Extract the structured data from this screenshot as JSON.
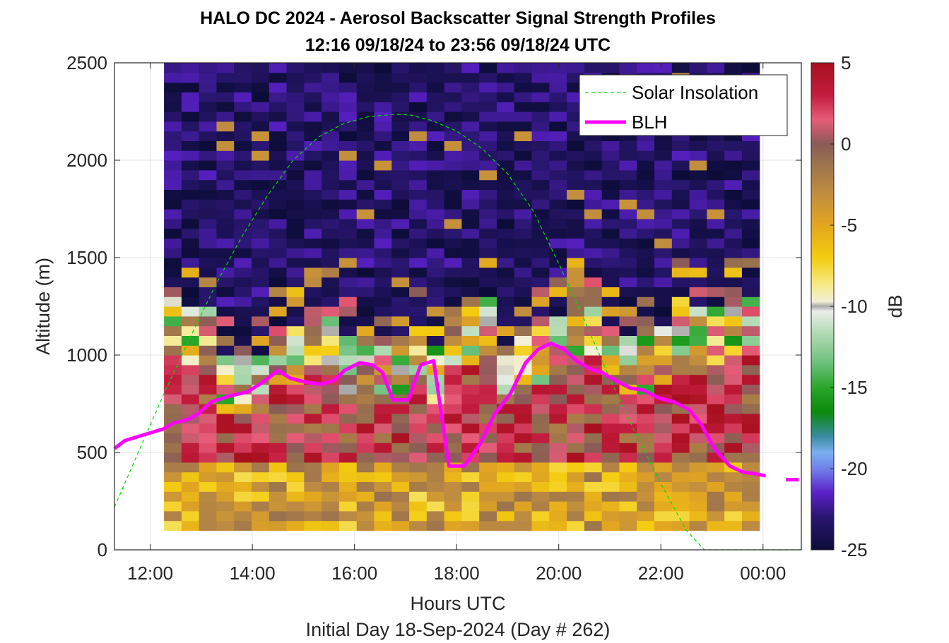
{
  "chart_data": {
    "type": "heatmap",
    "title": "HALO DC 2024 - Aerosol Backscatter Signal Strength Profiles",
    "subtitle": "12:16 09/18/24 to 23:56 09/18/24  UTC",
    "xlabel": "Hours UTC",
    "ylabel": "Altitude (m)",
    "footer": "Initial Day 18-Sep-2024 (Day # 262)",
    "x_range_hours": [
      11.3,
      24.75
    ],
    "x_ticks": [
      12,
      14,
      16,
      18,
      20,
      22,
      24
    ],
    "x_tick_labels": [
      "12:00",
      "14:00",
      "16:00",
      "18:00",
      "20:00",
      "22:00",
      "00:00"
    ],
    "ylim": [
      0,
      2500
    ],
    "y_ticks": [
      0,
      500,
      1000,
      1500,
      2000,
      2500
    ],
    "y_tick_labels": [
      "0",
      "500",
      "1000",
      "1500",
      "2000",
      "2500"
    ],
    "grid": true,
    "heatmap": {
      "time_start_hours": 12.27,
      "time_end_hours": 23.93,
      "columns": 34,
      "alt_start_m": 100,
      "alt_end_m": 2500,
      "rows": 48,
      "units": "dB",
      "colorbar": {
        "min": -25,
        "max": 5,
        "ticks": [
          5,
          0,
          -5,
          -10,
          -15,
          -20,
          -25
        ],
        "tick_labels": [
          "5",
          "0",
          "-5",
          "-10",
          "-15",
          "-20",
          "-25"
        ],
        "label": "dB",
        "colormap": [
          {
            "v": -25,
            "c": "#0c0c38"
          },
          {
            "v": -23,
            "c": "#2a1670"
          },
          {
            "v": -21.5,
            "c": "#5a20c8"
          },
          {
            "v": -20,
            "c": "#7080e8"
          },
          {
            "v": -19,
            "c": "#7ab0f0"
          },
          {
            "v": -18,
            "c": "#3a8aa0"
          },
          {
            "v": -16.5,
            "c": "#0a8a0a"
          },
          {
            "v": -15,
            "c": "#2aa62a"
          },
          {
            "v": -13.5,
            "c": "#6cc07c"
          },
          {
            "v": -11.5,
            "c": "#b8dcb8"
          },
          {
            "v": -10.3,
            "c": "#ececea"
          },
          {
            "v": -10,
            "c": "#a8a8a8"
          },
          {
            "v": -9.7,
            "c": "#f2f0d6"
          },
          {
            "v": -8.5,
            "c": "#f6e87a"
          },
          {
            "v": -7,
            "c": "#f4cc10"
          },
          {
            "v": -5,
            "c": "#e2a620"
          },
          {
            "v": -3,
            "c": "#bf8c40"
          },
          {
            "v": -1,
            "c": "#98704e"
          },
          {
            "v": 0,
            "c": "#8a5a58"
          },
          {
            "v": 1.5,
            "c": "#e65c78"
          },
          {
            "v": 3,
            "c": "#c21c3e"
          },
          {
            "v": 5,
            "c": "#a8101e"
          }
        ]
      },
      "profile_tops_m": [
        1280,
        1260,
        1250,
        1000,
        980,
        1000,
        1140,
        1170,
        1250,
        1260,
        1100,
        1080,
        1080,
        1100,
        1140,
        1060,
        1240,
        1250,
        1280,
        1050,
        1100,
        1150,
        1200,
        1280,
        1280,
        1150,
        1100,
        1100,
        1150,
        1280,
        1250,
        1250,
        1280,
        1280
      ]
    },
    "series": [
      {
        "name": "Solar Insolation",
        "style": "dashed",
        "color": "#00dd00",
        "x": [
          11.3,
          11.8,
          12.3,
          12.8,
          13.3,
          13.8,
          14.3,
          14.8,
          15.3,
          15.8,
          16.3,
          16.8,
          17.1,
          17.5,
          18.0,
          18.5,
          19.0,
          19.5,
          20.0,
          20.5,
          21.0,
          21.5,
          22.0,
          22.5,
          22.85,
          23.1,
          23.5,
          24.0,
          24.75
        ],
        "y": [
          220,
          520,
          820,
          1100,
          1370,
          1610,
          1820,
          2000,
          2120,
          2190,
          2225,
          2235,
          2232,
          2205,
          2150,
          2060,
          1930,
          1740,
          1470,
          1180,
          880,
          600,
          340,
          100,
          0,
          0,
          0,
          0,
          0
        ]
      },
      {
        "name": "BLH",
        "style": "solid",
        "color": "#ff00ff",
        "x": [
          11.3,
          11.5,
          11.75,
          12.0,
          12.25,
          12.45,
          12.75,
          12.95,
          13.2,
          13.55,
          13.9,
          14.2,
          14.5,
          14.75,
          15.05,
          15.35,
          15.6,
          15.8,
          16.1,
          16.35,
          16.55,
          16.75,
          17.05,
          17.3,
          17.55,
          17.85,
          18.15,
          18.45,
          18.75,
          19.05,
          19.35,
          19.6,
          19.85,
          20.1,
          20.35,
          20.6,
          20.85,
          21.1,
          21.4,
          21.65,
          21.95,
          22.25,
          22.55,
          22.8,
          23.05,
          23.35,
          23.6,
          23.85,
          24.05
        ],
        "y": [
          520,
          560,
          580,
          600,
          620,
          650,
          670,
          700,
          760,
          790,
          810,
          860,
          920,
          880,
          860,
          850,
          870,
          920,
          960,
          950,
          910,
          770,
          770,
          950,
          970,
          430,
          430,
          540,
          700,
          800,
          960,
          1030,
          1060,
          1030,
          970,
          930,
          910,
          870,
          830,
          820,
          780,
          760,
          720,
          640,
          520,
          430,
          400,
          390,
          380
        ]
      },
      {
        "name": "",
        "style": "solid",
        "color": "#ff00ff",
        "x": [
          24.45,
          24.7
        ],
        "y": [
          360,
          360
        ]
      }
    ],
    "legend": {
      "placement": "top-right",
      "entries": [
        "Solar Insolation",
        "BLH"
      ]
    }
  }
}
